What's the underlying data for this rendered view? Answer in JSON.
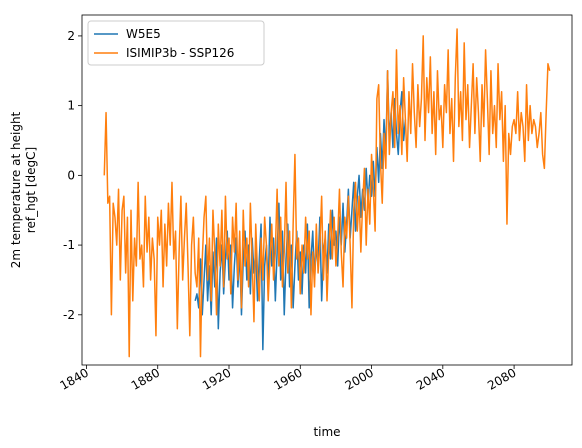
{
  "chart_data": {
    "type": "line",
    "xlabel": "time",
    "ylabel": [
      "2m temperature at height",
      "ref_hgt [degC]"
    ],
    "xlim": [
      1837.5,
      2112.5
    ],
    "xticks": [
      1840,
      1880,
      1920,
      1960,
      2000,
      2040,
      2080
    ],
    "ylim": [
      -2.72,
      2.3
    ],
    "yticks": [
      -2,
      -1,
      0,
      1,
      2
    ],
    "legend": "upper left",
    "series": [
      {
        "name": "W5E5",
        "color": "#1f77b4",
        "x": [
          1901,
          1902,
          1903,
          1904,
          1905,
          1906,
          1907,
          1908,
          1909,
          1910,
          1911,
          1912,
          1913,
          1914,
          1915,
          1916,
          1917,
          1918,
          1919,
          1920,
          1921,
          1922,
          1923,
          1924,
          1925,
          1926,
          1927,
          1928,
          1929,
          1930,
          1931,
          1932,
          1933,
          1934,
          1935,
          1936,
          1937,
          1938,
          1939,
          1940,
          1941,
          1942,
          1943,
          1944,
          1945,
          1946,
          1947,
          1948,
          1949,
          1950,
          1951,
          1952,
          1953,
          1954,
          1955,
          1956,
          1957,
          1958,
          1959,
          1960,
          1961,
          1962,
          1963,
          1964,
          1965,
          1966,
          1967,
          1968,
          1969,
          1970,
          1971,
          1972,
          1973,
          1974,
          1975,
          1976,
          1977,
          1978,
          1979,
          1980,
          1981,
          1982,
          1983,
          1984,
          1985,
          1986,
          1987,
          1988,
          1989,
          1990,
          1991,
          1992,
          1993,
          1994,
          1995,
          1996,
          1997,
          1998,
          1999,
          2000,
          2001,
          2002,
          2003,
          2004,
          2005,
          2006,
          2007,
          2008,
          2009,
          2010,
          2011,
          2012,
          2013,
          2014,
          2015,
          2016,
          2017,
          2018,
          2019
        ],
        "values": [
          -1.8,
          -1.7,
          -1.9,
          -1.2,
          -2.0,
          -1.5,
          -1.0,
          -1.8,
          -1.3,
          -2.0,
          -1.1,
          -1.6,
          -0.9,
          -2.2,
          -1.4,
          -1.0,
          -1.7,
          -1.2,
          -0.8,
          -1.5,
          -1.0,
          -1.9,
          -1.3,
          -0.9,
          -1.6,
          -1.1,
          -2.0,
          -1.2,
          -0.8,
          -1.5,
          -1.0,
          -1.7,
          -0.9,
          -1.4,
          -1.1,
          -1.8,
          -1.2,
          -0.7,
          -2.5,
          -1.3,
          -1.0,
          -1.6,
          -0.6,
          -1.3,
          -0.9,
          -1.8,
          -1.1,
          -0.4,
          -1.5,
          -0.8,
          -2.0,
          -1.2,
          -0.7,
          -1.6,
          -1.0,
          -1.9,
          -1.3,
          -0.8,
          -1.5,
          -1.1,
          -1.7,
          -1.0,
          -1.4,
          -0.7,
          -1.9,
          -1.2,
          -0.8,
          -1.5,
          -1.0,
          -1.3,
          -0.6,
          -1.8,
          -1.1,
          -0.9,
          -1.4,
          -0.7,
          -1.2,
          -0.5,
          -1.0,
          -0.8,
          -1.3,
          -0.6,
          -1.0,
          -0.4,
          -1.1,
          -0.7,
          -0.2,
          -0.9,
          -0.5,
          -0.1,
          -0.8,
          -0.3,
          0.0,
          -0.6,
          -0.2,
          -0.5,
          0.1,
          -0.4,
          0.0,
          -0.3,
          0.2,
          -0.3,
          0.4,
          -0.1,
          0.6,
          0.1,
          0.8,
          0.3,
          1.5,
          0.5,
          0.9,
          0.4,
          1.1,
          0.6,
          0.3,
          0.9,
          1.2,
          0.5,
          0.8
        ]
      },
      {
        "name": "ISIMIP3b - SSP126",
        "color": "#ff7f0e",
        "x": [
          1850,
          1851,
          1852,
          1853,
          1854,
          1855,
          1856,
          1857,
          1858,
          1859,
          1860,
          1861,
          1862,
          1863,
          1864,
          1865,
          1866,
          1867,
          1868,
          1869,
          1870,
          1871,
          1872,
          1873,
          1874,
          1875,
          1876,
          1877,
          1878,
          1879,
          1880,
          1881,
          1882,
          1883,
          1884,
          1885,
          1886,
          1887,
          1888,
          1889,
          1890,
          1891,
          1892,
          1893,
          1894,
          1895,
          1896,
          1897,
          1898,
          1899,
          1900,
          1901,
          1902,
          1903,
          1904,
          1905,
          1906,
          1907,
          1908,
          1909,
          1910,
          1911,
          1912,
          1913,
          1914,
          1915,
          1916,
          1917,
          1918,
          1919,
          1920,
          1921,
          1922,
          1923,
          1924,
          1925,
          1926,
          1927,
          1928,
          1929,
          1930,
          1931,
          1932,
          1933,
          1934,
          1935,
          1936,
          1937,
          1938,
          1939,
          1940,
          1941,
          1942,
          1943,
          1944,
          1945,
          1946,
          1947,
          1948,
          1949,
          1950,
          1951,
          1952,
          1953,
          1954,
          1955,
          1956,
          1957,
          1958,
          1959,
          1960,
          1961,
          1962,
          1963,
          1964,
          1965,
          1966,
          1967,
          1968,
          1969,
          1970,
          1971,
          1972,
          1973,
          1974,
          1975,
          1976,
          1977,
          1978,
          1979,
          1980,
          1981,
          1982,
          1983,
          1984,
          1985,
          1986,
          1987,
          1988,
          1989,
          1990,
          1991,
          1992,
          1993,
          1994,
          1995,
          1996,
          1997,
          1998,
          1999,
          2000,
          2001,
          2002,
          2003,
          2004,
          2005,
          2006,
          2007,
          2008,
          2009,
          2010,
          2011,
          2012,
          2013,
          2014,
          2015,
          2016,
          2017,
          2018,
          2019,
          2020,
          2021,
          2022,
          2023,
          2024,
          2025,
          2026,
          2027,
          2028,
          2029,
          2030,
          2031,
          2032,
          2033,
          2034,
          2035,
          2036,
          2037,
          2038,
          2039,
          2040,
          2041,
          2042,
          2043,
          2044,
          2045,
          2046,
          2047,
          2048,
          2049,
          2050,
          2051,
          2052,
          2053,
          2054,
          2055,
          2056,
          2057,
          2058,
          2059,
          2060,
          2061,
          2062,
          2063,
          2064,
          2065,
          2066,
          2067,
          2068,
          2069,
          2070,
          2071,
          2072,
          2073,
          2074,
          2075,
          2076,
          2077,
          2078,
          2079,
          2080,
          2081,
          2082,
          2083,
          2084,
          2085,
          2086,
          2087,
          2088,
          2089,
          2090,
          2091,
          2092,
          2093,
          2094,
          2095,
          2096,
          2097,
          2098,
          2099,
          2100
        ],
        "values": [
          0.0,
          0.9,
          -0.4,
          -0.3,
          -2.0,
          -0.4,
          -0.6,
          -1.0,
          -0.2,
          -1.5,
          -0.5,
          -0.3,
          -1.4,
          -0.6,
          -2.6,
          -0.5,
          -1.8,
          -0.9,
          -1.3,
          -0.1,
          -1.2,
          -1.0,
          -1.6,
          -0.3,
          -1.1,
          -0.6,
          -1.5,
          -0.9,
          -1.2,
          -2.3,
          -0.6,
          -1.0,
          -0.5,
          -1.6,
          -0.7,
          -1.3,
          -0.4,
          -1.0,
          -0.1,
          -1.2,
          -0.8,
          -2.2,
          -1.1,
          -0.3,
          -1.5,
          -0.9,
          -0.4,
          -1.3,
          -2.3,
          -1.0,
          -0.6,
          -1.4,
          -1.6,
          -0.9,
          -2.6,
          -1.2,
          -0.6,
          -0.3,
          -1.5,
          -0.9,
          -1.8,
          -0.5,
          -1.1,
          -2.0,
          -0.7,
          -1.3,
          -0.5,
          -1.6,
          -0.3,
          -1.2,
          -0.9,
          -1.7,
          -0.6,
          -1.1,
          -0.4,
          -1.5,
          -0.8,
          -1.9,
          -0.5,
          -1.3,
          -0.9,
          -1.6,
          -0.4,
          -1.2,
          -2.1,
          -0.7,
          -1.4,
          -1.8,
          -0.9,
          -1.5,
          -0.6,
          -1.0,
          -1.8,
          -1.2,
          -0.7,
          -1.5,
          -1.1,
          -0.2,
          -1.3,
          -0.6,
          -1.6,
          -1.1,
          -0.1,
          -1.4,
          -0.8,
          -1.9,
          -0.7,
          0.3,
          -1.2,
          -0.9,
          -1.7,
          -1.0,
          -1.4,
          -0.6,
          -1.2,
          -0.8,
          -2.0,
          -1.1,
          -1.6,
          -0.7,
          -1.4,
          -1.0,
          -0.3,
          -1.5,
          -0.8,
          -1.8,
          -1.1,
          -0.5,
          -1.2,
          -0.6,
          -1.3,
          -0.9,
          -0.2,
          -1.1,
          -1.6,
          -0.6,
          -0.9,
          -0.3,
          -1.0,
          -1.9,
          -0.5,
          -0.1,
          -0.8,
          -0.3,
          -1.1,
          -0.4,
          0.1,
          -1.0,
          -0.2,
          -0.7,
          0.3,
          -0.2,
          -0.8,
          1.1,
          1.3,
          0.2,
          -0.4,
          0.6,
          0.1,
          1.5,
          0.3,
          0.9,
          1.2,
          0.4,
          1.8,
          0.6,
          1.0,
          0.3,
          1.4,
          0.8,
          0.2,
          1.2,
          0.6,
          1.6,
          0.9,
          0.4,
          1.3,
          0.7,
          1.1,
          2.0,
          0.5,
          1.4,
          0.9,
          1.7,
          0.6,
          1.2,
          0.3,
          1.5,
          0.8,
          1.0,
          0.4,
          1.3,
          0.9,
          1.8,
          0.6,
          1.1,
          0.2,
          1.4,
          2.1,
          0.7,
          1.2,
          0.5,
          1.9,
          0.8,
          1.3,
          0.4,
          1.0,
          1.6,
          0.6,
          1.4,
          0.9,
          0.2,
          1.3,
          0.7,
          1.8,
          1.1,
          0.3,
          1.5,
          0.6,
          1.0,
          0.4,
          1.6,
          0.8,
          1.2,
          0.2,
          1.0,
          -0.7,
          0.6,
          0.3,
          0.7,
          0.8,
          0.6,
          1.2,
          0.5,
          0.9,
          0.7,
          0.2,
          1.3,
          0.5,
          1.0,
          0.6,
          0.8,
          0.7,
          0.4,
          0.6,
          0.9,
          0.3,
          0.1,
          0.9,
          1.6,
          1.5
        ]
      }
    ]
  }
}
